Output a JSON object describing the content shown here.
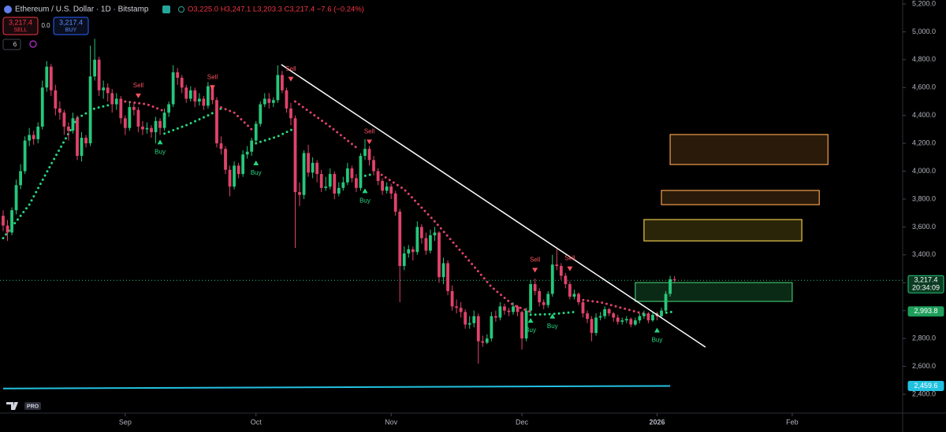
{
  "chart_data": {
    "type": "candlestick",
    "symbol": "Ethereum / U.S. Dollar · 1D · Bitstamp",
    "ohlc_legend": "O3,225.0 H3,247.1 L3,203.3 C3,217.4 −7.6 (−0.24%)",
    "trade_buttons": {
      "sell_price": "3,217.4",
      "sell": "SELL",
      "spread": "0.0",
      "buy_price": "3,217.4",
      "buy": "BUY"
    },
    "indicator_count": "6",
    "logo_badge": "PRO",
    "up_color": "#26c77a",
    "down_color": "#e0436b",
    "xlim": [
      -0.72,
      206.33
    ],
    "ylim": [
      2264.5,
      5228.2
    ],
    "xticks": [
      {
        "value": 28,
        "label": "Sep"
      },
      {
        "value": 58,
        "label": "Oct"
      },
      {
        "value": 89,
        "label": "Nov"
      },
      {
        "value": 119,
        "label": "Dec"
      },
      {
        "value": 150,
        "label": "2026"
      },
      {
        "value": 181,
        "label": "Feb"
      }
    ],
    "yticks": [
      {
        "value": 2400,
        "label": "2,400.0"
      },
      {
        "value": 2600,
        "label": "2,600.0"
      },
      {
        "value": 2800,
        "label": "2,800.0"
      },
      {
        "value": 3000,
        "label": "3,000.0"
      },
      {
        "value": 3200,
        "label": "3,200.0"
      },
      {
        "value": 3400,
        "label": "3,400.0"
      },
      {
        "value": 3600,
        "label": "3,600.0"
      },
      {
        "value": 3800,
        "label": "3,800.0"
      },
      {
        "value": 4000,
        "label": "4,000.0"
      },
      {
        "value": 4200,
        "label": "4,200.0"
      },
      {
        "value": 4400,
        "label": "4,400.0"
      },
      {
        "value": 4600,
        "label": "4,600.0"
      },
      {
        "value": 4800,
        "label": "4,800.0"
      },
      {
        "value": 5000,
        "label": "5,000.0"
      },
      {
        "value": 5200,
        "label": "5,200.0"
      }
    ],
    "candles": [
      [
        3680,
        3720,
        3570,
        3610
      ],
      [
        3610,
        3650,
        3500,
        3560
      ],
      [
        3560,
        3740,
        3540,
        3720
      ],
      [
        3720,
        3940,
        3690,
        3900
      ],
      [
        3900,
        4050,
        3870,
        4000
      ],
      [
        4000,
        4250,
        3980,
        4220
      ],
      [
        4220,
        4310,
        4180,
        4260
      ],
      [
        4260,
        4290,
        4190,
        4230
      ],
      [
        4230,
        4350,
        4200,
        4320
      ],
      [
        4320,
        4650,
        4300,
        4600
      ],
      [
        4600,
        4790,
        4570,
        4750
      ],
      [
        4750,
        4770,
        4540,
        4580
      ],
      [
        4580,
        4620,
        4400,
        4450
      ],
      [
        4450,
        4500,
        4370,
        4420
      ],
      [
        4420,
        4440,
        4260,
        4320
      ],
      [
        4320,
        4350,
        4220,
        4290
      ],
      [
        4290,
        4420,
        4270,
        4380
      ],
      [
        4380,
        4400,
        4080,
        4110
      ],
      [
        4110,
        4280,
        4070,
        4240
      ],
      [
        4240,
        4260,
        4170,
        4200
      ],
      [
        4200,
        4900,
        4180,
        4680
      ],
      [
        4680,
        4950,
        4650,
        4800
      ],
      [
        4800,
        4820,
        4540,
        4580
      ],
      [
        4580,
        4650,
        4520,
        4600
      ],
      [
        4600,
        4630,
        4500,
        4560
      ],
      [
        4560,
        4590,
        4420,
        4480
      ],
      [
        4480,
        4560,
        4440,
        4520
      ],
      [
        4520,
        4540,
        4340,
        4380
      ],
      [
        4380,
        4400,
        4260,
        4310
      ],
      [
        4310,
        4500,
        4290,
        4460
      ],
      [
        4460,
        4490,
        4400,
        4440
      ],
      [
        4440,
        4460,
        4280,
        4320
      ],
      [
        4320,
        4360,
        4260,
        4300
      ],
      [
        4300,
        4350,
        4270,
        4310
      ],
      [
        4310,
        4330,
        4240,
        4280
      ],
      [
        4280,
        4390,
        4200,
        4360
      ],
      [
        4360,
        4380,
        4260,
        4310
      ],
      [
        4310,
        4450,
        4290,
        4420
      ],
      [
        4420,
        4500,
        4390,
        4480
      ],
      [
        4480,
        4760,
        4460,
        4710
      ],
      [
        4710,
        4740,
        4620,
        4670
      ],
      [
        4670,
        4690,
        4560,
        4600
      ],
      [
        4600,
        4620,
        4490,
        4520
      ],
      [
        4520,
        4610,
        4500,
        4580
      ],
      [
        4580,
        4600,
        4460,
        4500
      ],
      [
        4500,
        4560,
        4470,
        4520
      ],
      [
        4520,
        4540,
        4440,
        4470
      ],
      [
        4470,
        4640,
        4450,
        4610
      ],
      [
        4610,
        4620,
        4480,
        4510
      ],
      [
        4510,
        4530,
        4170,
        4200
      ],
      [
        4200,
        4250,
        4120,
        4160
      ],
      [
        4160,
        4180,
        3980,
        4010
      ],
      [
        4010,
        4040,
        3820,
        3890
      ],
      [
        3890,
        4070,
        3870,
        4040
      ],
      [
        4040,
        4060,
        3950,
        3980
      ],
      [
        3980,
        4150,
        3960,
        4120
      ],
      [
        4120,
        4180,
        4090,
        4140
      ],
      [
        4140,
        4240,
        4110,
        4220
      ],
      [
        4220,
        4360,
        4200,
        4340
      ],
      [
        4340,
        4500,
        4320,
        4480
      ],
      [
        4480,
        4560,
        4460,
        4520
      ],
      [
        4520,
        4560,
        4450,
        4490
      ],
      [
        4490,
        4530,
        4460,
        4510
      ],
      [
        4510,
        4760,
        4490,
        4690
      ],
      [
        4690,
        4720,
        4560,
        4580
      ],
      [
        4580,
        4600,
        4420,
        4450
      ],
      [
        4450,
        4490,
        4330,
        4380
      ],
      [
        4380,
        4400,
        3450,
        3850
      ],
      [
        3850,
        3920,
        3750,
        3830
      ],
      [
        3830,
        4150,
        3800,
        4130
      ],
      [
        4130,
        4190,
        3960,
        3990
      ],
      [
        3990,
        4100,
        3950,
        4060
      ],
      [
        4060,
        4080,
        3920,
        3980
      ],
      [
        3980,
        4010,
        3850,
        3880
      ],
      [
        3880,
        3960,
        3860,
        3890
      ],
      [
        3890,
        4020,
        3870,
        3980
      ],
      [
        3980,
        4000,
        3800,
        3840
      ],
      [
        3840,
        3920,
        3820,
        3880
      ],
      [
        3880,
        3960,
        3860,
        3920
      ],
      [
        3920,
        4060,
        3900,
        4020
      ],
      [
        4020,
        4040,
        3920,
        3950
      ],
      [
        3950,
        3980,
        3850,
        3880
      ],
      [
        3880,
        4130,
        3860,
        4110
      ],
      [
        4110,
        4230,
        4080,
        4160
      ],
      [
        4160,
        4180,
        4040,
        4080
      ],
      [
        4080,
        4110,
        3970,
        4000
      ],
      [
        4000,
        4020,
        3900,
        3930
      ],
      [
        3930,
        3950,
        3830,
        3860
      ],
      [
        3860,
        3920,
        3840,
        3890
      ],
      [
        3890,
        3910,
        3800,
        3840
      ],
      [
        3840,
        3860,
        3680,
        3710
      ],
      [
        3710,
        3730,
        3060,
        3320
      ],
      [
        3320,
        3460,
        3290,
        3410
      ],
      [
        3410,
        3470,
        3380,
        3440
      ],
      [
        3440,
        3460,
        3360,
        3420
      ],
      [
        3420,
        3640,
        3400,
        3600
      ],
      [
        3600,
        3620,
        3480,
        3520
      ],
      [
        3520,
        3560,
        3400,
        3430
      ],
      [
        3430,
        3580,
        3410,
        3540
      ],
      [
        3540,
        3600,
        3500,
        3560
      ],
      [
        3560,
        3570,
        3200,
        3240
      ],
      [
        3240,
        3380,
        3190,
        3340
      ],
      [
        3340,
        3360,
        3110,
        3140
      ],
      [
        3140,
        3180,
        3000,
        3030
      ],
      [
        3030,
        3080,
        2980,
        3020
      ],
      [
        3020,
        3060,
        2950,
        2990
      ],
      [
        2990,
        3010,
        2870,
        2900
      ],
      [
        2900,
        2960,
        2870,
        2910
      ],
      [
        2910,
        3000,
        2880,
        2960
      ],
      [
        2960,
        2980,
        2620,
        2780
      ],
      [
        2780,
        2820,
        2740,
        2770
      ],
      [
        2770,
        2830,
        2760,
        2800
      ],
      [
        2800,
        2990,
        2780,
        2960
      ],
      [
        2960,
        3000,
        2920,
        2950
      ],
      [
        2950,
        3060,
        2930,
        3030
      ],
      [
        3030,
        3050,
        2970,
        3000
      ],
      [
        3000,
        3020,
        2960,
        2990
      ],
      [
        2990,
        3060,
        2970,
        3030
      ],
      [
        3030,
        3040,
        2960,
        2990
      ],
      [
        2990,
        3000,
        2720,
        2800
      ],
      [
        2800,
        3020,
        2780,
        3000
      ],
      [
        3000,
        3220,
        2980,
        3190
      ],
      [
        3190,
        3230,
        3110,
        3140
      ],
      [
        3140,
        3160,
        3030,
        3060
      ],
      [
        3060,
        3080,
        3010,
        3040
      ],
      [
        3040,
        3140,
        3020,
        3120
      ],
      [
        3120,
        3400,
        3100,
        3330
      ],
      [
        3330,
        3440,
        3290,
        3320
      ],
      [
        3320,
        3340,
        3220,
        3250
      ],
      [
        3250,
        3270,
        3160,
        3190
      ],
      [
        3190,
        3210,
        3080,
        3100
      ],
      [
        3100,
        3150,
        3080,
        3120
      ],
      [
        3120,
        3130,
        3040,
        3060
      ],
      [
        3060,
        3070,
        2950,
        2980
      ],
      [
        2980,
        3000,
        2910,
        2940
      ],
      [
        2940,
        2960,
        2780,
        2840
      ],
      [
        2840,
        2980,
        2820,
        2950
      ],
      [
        2950,
        2990,
        2930,
        2960
      ],
      [
        2960,
        3030,
        2940,
        3010
      ],
      [
        3010,
        3020,
        2960,
        2980
      ],
      [
        2980,
        2990,
        2920,
        2950
      ],
      [
        2950,
        2970,
        2900,
        2920
      ],
      [
        2920,
        2950,
        2900,
        2930
      ],
      [
        2930,
        2960,
        2910,
        2940
      ],
      [
        2940,
        2950,
        2880,
        2900
      ],
      [
        2900,
        2950,
        2890,
        2930
      ],
      [
        2930,
        2980,
        2910,
        2960
      ],
      [
        2960,
        3000,
        2940,
        2980
      ],
      [
        2980,
        2990,
        2910,
        2930
      ],
      [
        2930,
        2990,
        2920,
        2970
      ],
      [
        2970,
        2990,
        2930,
        2960
      ],
      [
        2960,
        3020,
        2950,
        3000
      ],
      [
        3000,
        3140,
        2990,
        3120
      ],
      [
        3120,
        3250,
        3100,
        3225
      ],
      [
        3225.0,
        3247.1,
        3203.3,
        3217.4
      ]
    ],
    "trail": [
      {
        "color": "#26d67f",
        "points": [
          [
            0,
            3520
          ],
          [
            6,
            3760
          ],
          [
            11,
            4050
          ],
          [
            17,
            4380
          ],
          [
            21,
            4450
          ],
          [
            25,
            4480
          ]
        ]
      },
      {
        "color": "#e0436b",
        "points": [
          [
            28,
            4500
          ],
          [
            33,
            4480
          ],
          [
            37,
            4430
          ]
        ]
      },
      {
        "color": "#26d67f",
        "points": [
          [
            37,
            4270
          ],
          [
            42,
            4330
          ],
          [
            47,
            4400
          ],
          [
            50,
            4450
          ]
        ]
      },
      {
        "color": "#e0436b",
        "points": [
          [
            49,
            4470
          ],
          [
            53,
            4420
          ],
          [
            57,
            4300
          ]
        ]
      },
      {
        "color": "#26d67f",
        "points": [
          [
            58,
            4200
          ],
          [
            63,
            4250
          ],
          [
            67,
            4310
          ]
        ]
      },
      {
        "color": "#e0436b",
        "points": [
          [
            67,
            4500
          ],
          [
            75,
            4320
          ],
          [
            81,
            4170
          ]
        ]
      },
      {
        "color": "#26d67f",
        "points": [
          [
            82,
            3960
          ],
          [
            85,
            3980
          ]
        ]
      },
      {
        "color": "#e0436b",
        "points": [
          [
            85,
            4010
          ],
          [
            92,
            3870
          ],
          [
            99,
            3640
          ],
          [
            106,
            3390
          ],
          [
            112,
            3170
          ],
          [
            117,
            3040
          ],
          [
            121,
            2990
          ]
        ]
      },
      {
        "color": "#26d67f",
        "points": [
          [
            121,
            2970
          ],
          [
            126,
            2975
          ],
          [
            131,
            2990
          ]
        ]
      },
      {
        "color": "#e0436b",
        "points": [
          [
            132,
            3080
          ],
          [
            137,
            3060
          ],
          [
            143,
            3010
          ],
          [
            149,
            2960
          ]
        ]
      },
      {
        "color": "#26d67f",
        "points": [
          [
            150,
            2975
          ],
          [
            154,
            2993.8
          ]
        ]
      }
    ],
    "markers": [
      {
        "label": "Sell",
        "index": 31,
        "price": 4540
      },
      {
        "label": "Sell",
        "index": 48,
        "price": 4600
      },
      {
        "label": "Sell",
        "index": 66,
        "price": 4660
      },
      {
        "label": "Sell",
        "index": 84,
        "price": 4210
      },
      {
        "label": "Sell",
        "index": 122,
        "price": 3290
      },
      {
        "label": "Sell",
        "index": 130,
        "price": 3300
      },
      {
        "label": "Buy",
        "index": 36,
        "price": 4210
      },
      {
        "label": "Buy",
        "index": 58,
        "price": 4060
      },
      {
        "label": "Buy",
        "index": 83,
        "price": 3860
      },
      {
        "label": "Buy",
        "index": 121,
        "price": 2930
      },
      {
        "label": "Buy",
        "index": 126,
        "price": 2960
      },
      {
        "label": "Buy",
        "index": 150,
        "price": 2860
      }
    ],
    "boxes": [
      {
        "x": [
          145,
          181
        ],
        "y": [
          3066,
          3201
        ],
        "color": "#3fbf6a",
        "fill": "#0b2a16"
      },
      {
        "x": [
          147,
          183.2
        ],
        "y": [
          3500,
          3653
        ],
        "color": "#e6c84a",
        "fill": "#2a2508"
      },
      {
        "x": [
          151,
          187.2
        ],
        "y": [
          3760,
          3862
        ],
        "color": "#f0a050",
        "fill": "#2a1a0a"
      },
      {
        "x": [
          153,
          189.2
        ],
        "y": [
          4048,
          4263
        ],
        "color": "#f0a050",
        "fill": "#2a1a0a"
      }
    ],
    "trendline": {
      "color": "#ffffff",
      "points": [
        [
          63.8,
          4765
        ],
        [
          161.1,
          2738
        ]
      ]
    },
    "baseline_line": {
      "color": "#22c1e0",
      "points": [
        [
          0,
          2441
        ],
        [
          153,
          2459.6
        ]
      ]
    },
    "price_labels": [
      {
        "value": 3217.4,
        "label": "3,217.4",
        "sub": "20:34:09",
        "color": "#0b3b22",
        "border": "#26c77a"
      },
      {
        "value": 2993.8,
        "label": "2,993.8",
        "color": "#1e9e5a",
        "border": "#1e9e5a"
      },
      {
        "value": 2459.6,
        "label": "2,459.6",
        "color": "#22c1e0",
        "border": "#22c1e0"
      }
    ]
  }
}
